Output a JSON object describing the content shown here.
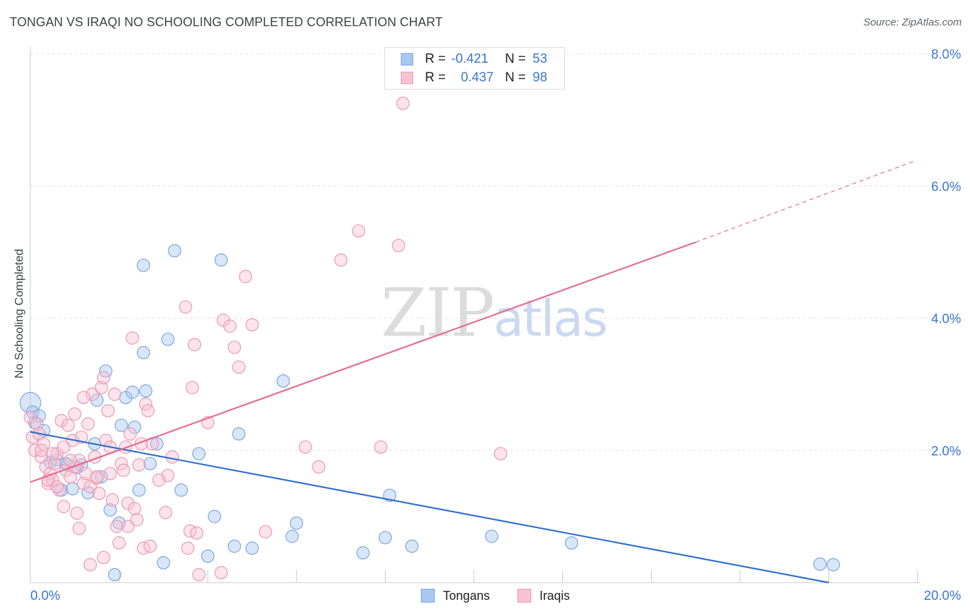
{
  "header": {
    "title": "TONGAN VS IRAQI NO SCHOOLING COMPLETED CORRELATION CHART",
    "source": "Source: ZipAtlas.com"
  },
  "watermark": {
    "part1": "ZIP",
    "part2": "atlas"
  },
  "stats": [
    {
      "r_label": "R =",
      "r_value": "-0.421",
      "n_label": "N =",
      "n_value": "53",
      "color": "#a9c8f0",
      "border": "#7aa6e0"
    },
    {
      "r_label": "R =",
      "r_value": "0.437",
      "n_label": "N =",
      "n_value": "98",
      "color": "#f7c3d2",
      "border": "#eb98b2"
    }
  ],
  "legend": [
    {
      "name": "Tongans",
      "color": "#a9c8f0",
      "border": "#7aa6e0"
    },
    {
      "name": "Iraqis",
      "color": "#f7c3d2",
      "border": "#eb98b2"
    }
  ],
  "chart_data": {
    "type": "scatter",
    "title": "TONGAN VS IRAQI NO SCHOOLING COMPLETED CORRELATION CHART",
    "xlabel": "",
    "ylabel": "No Schooling Completed",
    "xlim": [
      0,
      20
    ],
    "ylim": [
      0,
      8.0
    ],
    "x_tick_labels": [
      "0.0%",
      "20.0%"
    ],
    "y_ticks": [
      2.0,
      4.0,
      6.0,
      8.0
    ],
    "y_tick_labels": [
      "2.0%",
      "4.0%",
      "6.0%",
      "8.0%"
    ],
    "grid": true,
    "legend_position": "bottom-center",
    "series": [
      {
        "name": "Tongans",
        "color": "#7aa6e0",
        "fill": "#a9c8f0",
        "trend_color": "#2f6fd0",
        "trend": {
          "x0": 0.0,
          "y0": 2.28,
          "x1": 18.0,
          "y1": 0.0,
          "dash_to": null
        },
        "points": [
          [
            0.0,
            2.72
          ],
          [
            0.05,
            2.58
          ],
          [
            0.1,
            2.42
          ],
          [
            0.2,
            2.52
          ],
          [
            0.3,
            2.3
          ],
          [
            0.45,
            1.82
          ],
          [
            0.6,
            1.86
          ],
          [
            0.7,
            1.4
          ],
          [
            0.85,
            1.78
          ],
          [
            0.95,
            1.42
          ],
          [
            1.05,
            1.74
          ],
          [
            1.15,
            1.78
          ],
          [
            1.3,
            1.36
          ],
          [
            1.45,
            2.1
          ],
          [
            1.5,
            2.76
          ],
          [
            1.6,
            1.6
          ],
          [
            1.7,
            3.2
          ],
          [
            1.8,
            1.1
          ],
          [
            1.9,
            0.12
          ],
          [
            2.0,
            0.9
          ],
          [
            2.05,
            2.38
          ],
          [
            2.15,
            2.8
          ],
          [
            2.3,
            2.88
          ],
          [
            2.35,
            2.35
          ],
          [
            2.45,
            1.4
          ],
          [
            2.55,
            3.48
          ],
          [
            2.6,
            2.9
          ],
          [
            2.7,
            1.8
          ],
          [
            2.85,
            2.1
          ],
          [
            3.0,
            0.3
          ],
          [
            3.1,
            3.68
          ],
          [
            3.25,
            5.02
          ],
          [
            3.4,
            1.4
          ],
          [
            3.8,
            1.95
          ],
          [
            4.0,
            0.4
          ],
          [
            4.15,
            1.0
          ],
          [
            4.3,
            4.88
          ],
          [
            4.6,
            0.55
          ],
          [
            4.7,
            2.25
          ],
          [
            5.0,
            0.52
          ],
          [
            5.7,
            3.05
          ],
          [
            5.9,
            0.7
          ],
          [
            6.0,
            0.9
          ],
          [
            7.5,
            0.45
          ],
          [
            8.0,
            0.68
          ],
          [
            8.1,
            1.32
          ],
          [
            8.6,
            0.55
          ],
          [
            10.4,
            0.7
          ],
          [
            12.2,
            0.6
          ],
          [
            17.8,
            0.28
          ],
          [
            18.1,
            0.27
          ],
          [
            2.55,
            4.8
          ],
          [
            0.8,
            1.8
          ]
        ]
      },
      {
        "name": "Iraqis",
        "color": "#eb98b2",
        "fill": "#f7c3d2",
        "trend_color": "#e46a92",
        "trend": {
          "x0": 0.0,
          "y0": 1.52,
          "x1": 15.0,
          "y1": 5.15,
          "dash_to": {
            "x": 19.9,
            "y": 6.37
          }
        },
        "points": [
          [
            0.0,
            2.5
          ],
          [
            0.05,
            2.2
          ],
          [
            0.1,
            2.0
          ],
          [
            0.15,
            2.4
          ],
          [
            0.2,
            2.25
          ],
          [
            0.25,
            1.9
          ],
          [
            0.3,
            2.1
          ],
          [
            0.35,
            1.75
          ],
          [
            0.4,
            1.5
          ],
          [
            0.45,
            1.65
          ],
          [
            0.5,
            1.55
          ],
          [
            0.55,
            1.8
          ],
          [
            0.6,
            1.95
          ],
          [
            0.65,
            1.4
          ],
          [
            0.7,
            2.45
          ],
          [
            0.75,
            1.15
          ],
          [
            0.8,
            1.7
          ],
          [
            0.85,
            2.38
          ],
          [
            0.9,
            1.6
          ],
          [
            0.95,
            2.15
          ],
          [
            1.0,
            2.55
          ],
          [
            1.05,
            1.05
          ],
          [
            1.1,
            1.85
          ],
          [
            1.15,
            2.2
          ],
          [
            1.2,
            1.5
          ],
          [
            1.25,
            1.65
          ],
          [
            1.3,
            2.4
          ],
          [
            1.35,
            1.45
          ],
          [
            1.4,
            2.85
          ],
          [
            1.45,
            1.9
          ],
          [
            1.5,
            1.58
          ],
          [
            1.55,
            1.35
          ],
          [
            1.6,
            2.95
          ],
          [
            1.65,
            3.1
          ],
          [
            1.7,
            2.15
          ],
          [
            1.75,
            2.6
          ],
          [
            1.8,
            1.65
          ],
          [
            1.85,
            1.25
          ],
          [
            1.9,
            2.85
          ],
          [
            1.95,
            0.85
          ],
          [
            2.0,
            0.6
          ],
          [
            2.05,
            1.8
          ],
          [
            2.1,
            1.7
          ],
          [
            2.15,
            2.05
          ],
          [
            2.2,
            1.2
          ],
          [
            2.25,
            2.25
          ],
          [
            2.3,
            3.7
          ],
          [
            2.35,
            1.12
          ],
          [
            2.4,
            0.95
          ],
          [
            2.45,
            1.78
          ],
          [
            2.5,
            2.1
          ],
          [
            2.55,
            0.52
          ],
          [
            2.6,
            2.7
          ],
          [
            2.65,
            2.6
          ],
          [
            2.7,
            0.55
          ],
          [
            2.75,
            2.1
          ],
          [
            3.05,
            1.06
          ],
          [
            3.1,
            1.62
          ],
          [
            3.2,
            1.9
          ],
          [
            3.5,
            4.17
          ],
          [
            3.55,
            0.52
          ],
          [
            3.6,
            0.78
          ],
          [
            3.65,
            2.95
          ],
          [
            3.7,
            3.6
          ],
          [
            3.75,
            0.75
          ],
          [
            3.8,
            0.12
          ],
          [
            4.0,
            2.42
          ],
          [
            4.3,
            0.15
          ],
          [
            4.35,
            3.97
          ],
          [
            4.5,
            3.88
          ],
          [
            4.6,
            3.56
          ],
          [
            4.7,
            3.26
          ],
          [
            4.85,
            4.63
          ],
          [
            5.0,
            3.9
          ],
          [
            5.3,
            0.77
          ],
          [
            6.2,
            2.05
          ],
          [
            6.5,
            1.75
          ],
          [
            7.0,
            4.88
          ],
          [
            7.4,
            5.32
          ],
          [
            7.9,
            2.05
          ],
          [
            8.3,
            5.1
          ],
          [
            8.4,
            7.25
          ],
          [
            10.6,
            1.95
          ],
          [
            1.1,
            0.82
          ],
          [
            1.35,
            0.27
          ],
          [
            1.65,
            0.38
          ],
          [
            0.25,
            2.0
          ],
          [
            0.5,
            1.95
          ],
          [
            0.75,
            2.05
          ],
          [
            1.0,
            1.75
          ],
          [
            1.2,
            2.8
          ],
          [
            1.5,
            1.6
          ],
          [
            2.9,
            1.55
          ],
          [
            0.4,
            1.55
          ],
          [
            0.6,
            1.45
          ],
          [
            0.9,
            1.85
          ],
          [
            1.8,
            2.05
          ],
          [
            2.2,
            0.85
          ]
        ]
      }
    ],
    "point_radius": {
      "default": 9,
      "large": 15
    }
  }
}
